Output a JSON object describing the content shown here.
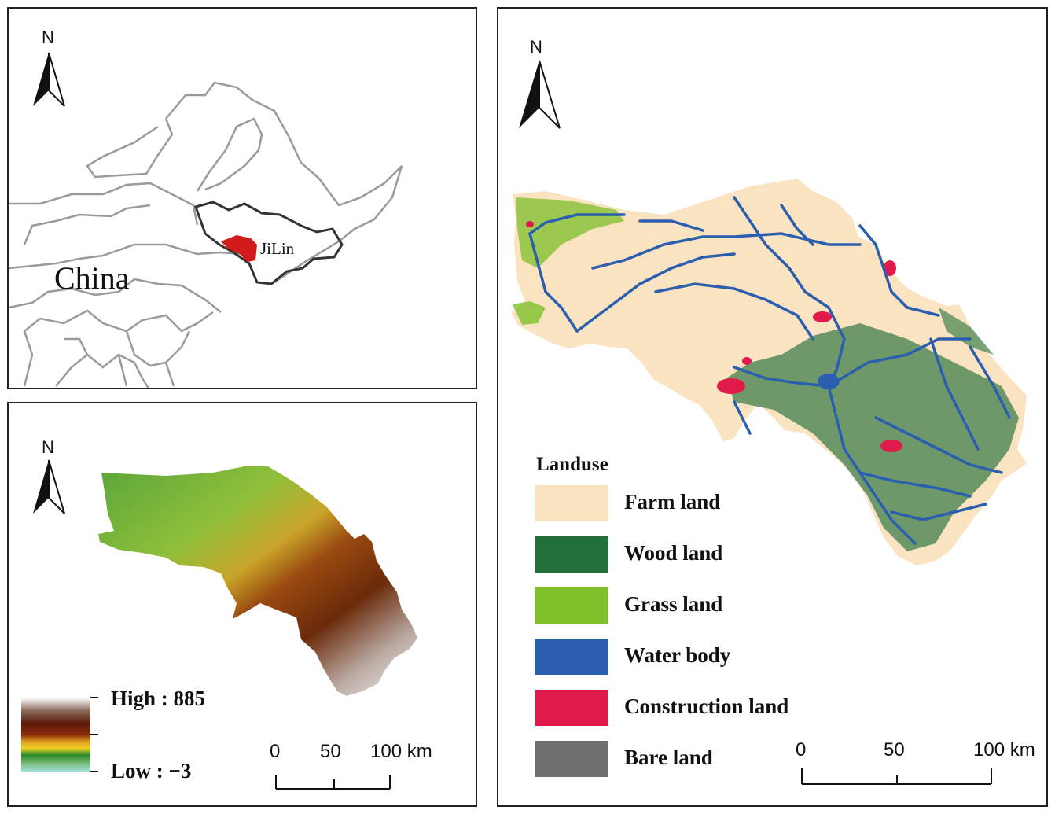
{
  "location_map": {
    "north_label": "N",
    "country_label": "China",
    "province_label": "JiLin",
    "study_area_color": "#d21c1c"
  },
  "dem_map": {
    "north_label": "N",
    "legend_high": "High : 885",
    "legend_low": "Low : −3",
    "scale": {
      "ticks": [
        "0",
        "50",
        "100 km"
      ]
    }
  },
  "landuse_map": {
    "north_label": "N",
    "legend_title": "Landuse",
    "classes": [
      {
        "label": "Farm land",
        "color": "#fae3c1"
      },
      {
        "label": "Wood land",
        "color": "#23703a"
      },
      {
        "label": "Grass land",
        "color": "#7ebf2a"
      },
      {
        "label": "Water body",
        "color": "#2a5fb0"
      },
      {
        "label": "Construction land",
        "color": "#e01a4b"
      },
      {
        "label": "Bare land",
        "color": "#6f6f6f"
      }
    ],
    "scale": {
      "ticks": [
        "0",
        "50",
        "100 km"
      ]
    }
  }
}
